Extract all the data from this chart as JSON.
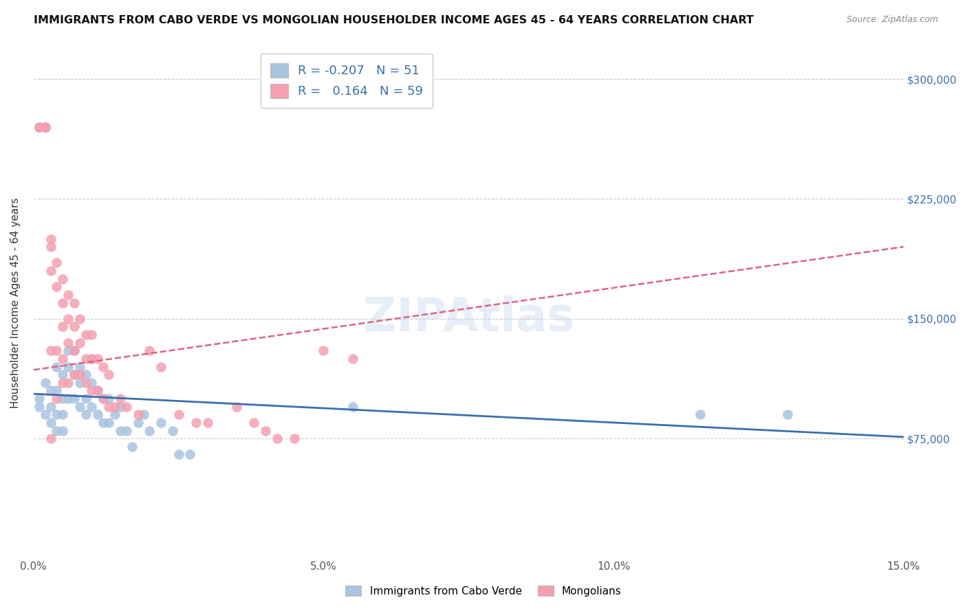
{
  "title": "IMMIGRANTS FROM CABO VERDE VS MONGOLIAN HOUSEHOLDER INCOME AGES 45 - 64 YEARS CORRELATION CHART",
  "source": "Source: ZipAtlas.com",
  "ylabel": "Householder Income Ages 45 - 64 years",
  "x_min": 0.0,
  "x_max": 0.15,
  "y_min": 0,
  "y_max": 320000,
  "x_ticks": [
    0.0,
    0.05,
    0.1,
    0.15
  ],
  "x_tick_labels": [
    "0.0%",
    "5.0%",
    "10.0%",
    "15.0%"
  ],
  "y_ticks": [
    75000,
    150000,
    225000,
    300000
  ],
  "y_tick_labels": [
    "$75,000",
    "$150,000",
    "$225,000",
    "$300,000"
  ],
  "cabo_verde_color": "#a8c4e0",
  "mongolian_color": "#f4a0b0",
  "cabo_verde_line_color": "#3b6faa",
  "mongolian_line_color": "#e06080",
  "legend_R_cabo": "-0.207",
  "legend_N_cabo": "51",
  "legend_R_mongo": "0.164",
  "legend_N_mongo": "59",
  "cabo_verde_x": [
    0.001,
    0.001,
    0.002,
    0.002,
    0.003,
    0.003,
    0.003,
    0.004,
    0.004,
    0.004,
    0.004,
    0.005,
    0.005,
    0.005,
    0.005,
    0.006,
    0.006,
    0.006,
    0.007,
    0.007,
    0.007,
    0.008,
    0.008,
    0.008,
    0.009,
    0.009,
    0.009,
    0.01,
    0.01,
    0.01,
    0.011,
    0.011,
    0.012,
    0.012,
    0.013,
    0.013,
    0.014,
    0.015,
    0.015,
    0.016,
    0.017,
    0.018,
    0.019,
    0.02,
    0.022,
    0.024,
    0.025,
    0.027,
    0.055,
    0.115,
    0.13
  ],
  "cabo_verde_y": [
    100000,
    95000,
    110000,
    90000,
    105000,
    95000,
    85000,
    120000,
    105000,
    90000,
    80000,
    115000,
    100000,
    90000,
    80000,
    130000,
    120000,
    100000,
    130000,
    115000,
    100000,
    120000,
    110000,
    95000,
    115000,
    100000,
    90000,
    125000,
    110000,
    95000,
    105000,
    90000,
    100000,
    85000,
    100000,
    85000,
    90000,
    95000,
    80000,
    80000,
    70000,
    85000,
    90000,
    80000,
    85000,
    80000,
    65000,
    65000,
    95000,
    90000,
    90000
  ],
  "mongolian_x": [
    0.001,
    0.001,
    0.001,
    0.002,
    0.002,
    0.002,
    0.003,
    0.003,
    0.003,
    0.003,
    0.003,
    0.004,
    0.004,
    0.004,
    0.004,
    0.005,
    0.005,
    0.005,
    0.005,
    0.005,
    0.006,
    0.006,
    0.006,
    0.006,
    0.007,
    0.007,
    0.007,
    0.007,
    0.008,
    0.008,
    0.008,
    0.009,
    0.009,
    0.009,
    0.01,
    0.01,
    0.01,
    0.011,
    0.011,
    0.012,
    0.012,
    0.013,
    0.013,
    0.014,
    0.015,
    0.016,
    0.018,
    0.02,
    0.022,
    0.025,
    0.028,
    0.03,
    0.035,
    0.038,
    0.04,
    0.042,
    0.045,
    0.05,
    0.055
  ],
  "mongolian_y": [
    270000,
    270000,
    270000,
    270000,
    270000,
    270000,
    200000,
    195000,
    180000,
    130000,
    75000,
    185000,
    170000,
    130000,
    100000,
    175000,
    160000,
    145000,
    125000,
    110000,
    165000,
    150000,
    135000,
    110000,
    160000,
    145000,
    130000,
    115000,
    150000,
    135000,
    115000,
    140000,
    125000,
    110000,
    140000,
    125000,
    105000,
    125000,
    105000,
    120000,
    100000,
    115000,
    95000,
    95000,
    100000,
    95000,
    90000,
    130000,
    120000,
    90000,
    85000,
    85000,
    95000,
    85000,
    80000,
    75000,
    75000,
    130000,
    125000
  ]
}
